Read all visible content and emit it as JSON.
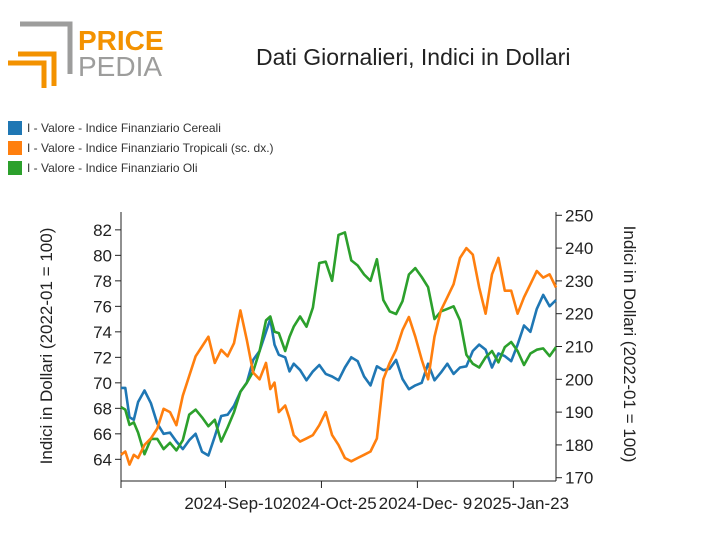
{
  "logo": {
    "word1": "PRICE",
    "word2": "PEDIA",
    "orange": "#f39200",
    "gray": "#9d9d9c"
  },
  "chart_data": {
    "type": "line",
    "title": "Dati Giornalieri, Indici in Dollari",
    "xlabel": "",
    "ylabel_left": "Indici in Dollari (2022-01 = 100)",
    "ylabel_right": "Indici in Dollari (2022-01 = 100)",
    "x_range": [
      "2024-07-23",
      "2025-02-12"
    ],
    "x_ticks": [
      {
        "date": "2024-09-10",
        "label": "2024-Sep-10"
      },
      {
        "date": "2024-10-25",
        "label": "2024-Oct-25"
      },
      {
        "date": "2024-12-09",
        "label": "2024-Dec- 9"
      },
      {
        "date": "2025-01-23",
        "label": "2025-Jan-23"
      }
    ],
    "ylim_left": [
      62.3,
      83.4
    ],
    "ylim_right": [
      169,
      251
    ],
    "yticks_left": [
      64,
      66,
      68,
      70,
      72,
      74,
      76,
      78,
      80,
      82
    ],
    "yticks_right": [
      170,
      180,
      190,
      200,
      210,
      220,
      230,
      240,
      250
    ],
    "legend_position": "top-left",
    "grid": false,
    "series": [
      {
        "name": "I - Valore - Indice Finanziario Cereali",
        "color": "#1f77b4",
        "axis": "left",
        "x": [
          "2024-07-23",
          "2024-07-25",
          "2024-07-27",
          "2024-07-29",
          "2024-07-31",
          "2024-08-03",
          "2024-08-06",
          "2024-08-09",
          "2024-08-12",
          "2024-08-15",
          "2024-08-18",
          "2024-08-21",
          "2024-08-24",
          "2024-08-27",
          "2024-08-30",
          "2024-09-02",
          "2024-09-05",
          "2024-09-08",
          "2024-09-11",
          "2024-09-14",
          "2024-09-17",
          "2024-09-20",
          "2024-09-23",
          "2024-09-26",
          "2024-09-29",
          "2024-10-01",
          "2024-10-03",
          "2024-10-05",
          "2024-10-08",
          "2024-10-10",
          "2024-10-12",
          "2024-10-15",
          "2024-10-18",
          "2024-10-21",
          "2024-10-24",
          "2024-10-27",
          "2024-10-30",
          "2024-11-02",
          "2024-11-05",
          "2024-11-08",
          "2024-11-11",
          "2024-11-14",
          "2024-11-17",
          "2024-11-20",
          "2024-11-23",
          "2024-11-26",
          "2024-11-29",
          "2024-12-02",
          "2024-12-05",
          "2024-12-08",
          "2024-12-11",
          "2024-12-14",
          "2024-12-17",
          "2024-12-20",
          "2024-12-23",
          "2024-12-26",
          "2024-12-29",
          "2025-01-01",
          "2025-01-04",
          "2025-01-07",
          "2025-01-10",
          "2025-01-13",
          "2025-01-16",
          "2025-01-19",
          "2025-01-22",
          "2025-01-25",
          "2025-01-28",
          "2025-01-31",
          "2025-02-03",
          "2025-02-06",
          "2025-02-09",
          "2025-02-12"
        ],
        "y": [
          69.6,
          69.6,
          67.3,
          67.1,
          68.5,
          69.4,
          68.4,
          66.8,
          66.0,
          66.1,
          65.4,
          64.8,
          65.5,
          66.0,
          64.6,
          64.3,
          65.8,
          67.4,
          67.5,
          68.2,
          69.3,
          70.0,
          71.8,
          72.5,
          74.0,
          75.0,
          73.0,
          72.2,
          72.0,
          70.9,
          71.5,
          71.0,
          70.2,
          70.9,
          71.4,
          70.7,
          70.5,
          70.2,
          71.2,
          72.0,
          71.7,
          70.5,
          69.8,
          71.3,
          71.0,
          71.1,
          71.8,
          70.3,
          69.5,
          69.8,
          70.0,
          71.5,
          70.2,
          70.8,
          71.5,
          70.7,
          71.2,
          71.3,
          72.5,
          73.0,
          72.6,
          71.2,
          72.3,
          72.1,
          71.7,
          73.0,
          74.5,
          74.0,
          75.8,
          76.9,
          76.0,
          76.5
        ]
      },
      {
        "name": "I - Valore - Indice Finanziario Tropicali (sc. dx.)",
        "color": "#ff7f0e",
        "axis": "right",
        "x": [
          "2024-07-23",
          "2024-07-25",
          "2024-07-27",
          "2024-07-29",
          "2024-07-31",
          "2024-08-03",
          "2024-08-06",
          "2024-08-09",
          "2024-08-12",
          "2024-08-15",
          "2024-08-18",
          "2024-08-21",
          "2024-08-24",
          "2024-08-27",
          "2024-08-30",
          "2024-09-02",
          "2024-09-05",
          "2024-09-08",
          "2024-09-11",
          "2024-09-14",
          "2024-09-17",
          "2024-09-20",
          "2024-09-23",
          "2024-09-26",
          "2024-09-29",
          "2024-10-01",
          "2024-10-03",
          "2024-10-05",
          "2024-10-08",
          "2024-10-10",
          "2024-10-12",
          "2024-10-15",
          "2024-10-18",
          "2024-10-21",
          "2024-10-24",
          "2024-10-27",
          "2024-10-30",
          "2024-11-02",
          "2024-11-05",
          "2024-11-08",
          "2024-11-11",
          "2024-11-14",
          "2024-11-17",
          "2024-11-20",
          "2024-11-23",
          "2024-11-26",
          "2024-11-29",
          "2024-12-02",
          "2024-12-05",
          "2024-12-08",
          "2024-12-11",
          "2024-12-14",
          "2024-12-17",
          "2024-12-20",
          "2024-12-23",
          "2024-12-26",
          "2024-12-29",
          "2025-01-01",
          "2025-01-04",
          "2025-01-07",
          "2025-01-10",
          "2025-01-13",
          "2025-01-16",
          "2025-01-19",
          "2025-01-22",
          "2025-01-25",
          "2025-01-28",
          "2025-01-31",
          "2025-02-03",
          "2025-02-06",
          "2025-02-09",
          "2025-02-12"
        ],
        "y": [
          177,
          178,
          174,
          177,
          176,
          180,
          182,
          185,
          191,
          190,
          186,
          195,
          201,
          207,
          210,
          213,
          205,
          209,
          207,
          211,
          221,
          212,
          202,
          200,
          205,
          197,
          199,
          190,
          192,
          188,
          183,
          181,
          182,
          183,
          186,
          190,
          183,
          180,
          176,
          175,
          176,
          177,
          178,
          182,
          200,
          205,
          209,
          215,
          219,
          213,
          206,
          200,
          213,
          221,
          225,
          229,
          237,
          240,
          238,
          228,
          220,
          232,
          237,
          227,
          227,
          220,
          225,
          229,
          233,
          231,
          232,
          228
        ]
      },
      {
        "name": "I - Valore - Indice Finanziario Oli",
        "color": "#2ca02c",
        "axis": "left",
        "x": [
          "2024-07-23",
          "2024-07-25",
          "2024-07-27",
          "2024-07-29",
          "2024-07-31",
          "2024-08-03",
          "2024-08-06",
          "2024-08-09",
          "2024-08-12",
          "2024-08-15",
          "2024-08-18",
          "2024-08-21",
          "2024-08-24",
          "2024-08-27",
          "2024-08-30",
          "2024-09-02",
          "2024-09-05",
          "2024-09-08",
          "2024-09-11",
          "2024-09-14",
          "2024-09-17",
          "2024-09-20",
          "2024-09-23",
          "2024-09-26",
          "2024-09-29",
          "2024-10-01",
          "2024-10-03",
          "2024-10-05",
          "2024-10-08",
          "2024-10-10",
          "2024-10-12",
          "2024-10-15",
          "2024-10-18",
          "2024-10-21",
          "2024-10-24",
          "2024-10-27",
          "2024-10-30",
          "2024-11-02",
          "2024-11-05",
          "2024-11-08",
          "2024-11-11",
          "2024-11-14",
          "2024-11-17",
          "2024-11-20",
          "2024-11-23",
          "2024-11-26",
          "2024-11-29",
          "2024-12-02",
          "2024-12-05",
          "2024-12-08",
          "2024-12-11",
          "2024-12-14",
          "2024-12-17",
          "2024-12-20",
          "2024-12-23",
          "2024-12-26",
          "2024-12-29",
          "2025-01-01",
          "2025-01-04",
          "2025-01-07",
          "2025-01-10",
          "2025-01-13",
          "2025-01-16",
          "2025-01-19",
          "2025-01-22",
          "2025-01-25",
          "2025-01-28",
          "2025-01-31",
          "2025-02-03",
          "2025-02-06",
          "2025-02-09",
          "2025-02-12"
        ],
        "y": [
          68.1,
          67.9,
          66.7,
          66.9,
          66.1,
          64.4,
          65.6,
          65.6,
          64.8,
          65.3,
          64.7,
          65.5,
          67.5,
          67.9,
          67.3,
          66.6,
          67.1,
          65.4,
          66.5,
          67.7,
          69.3,
          70.0,
          70.9,
          72.5,
          74.9,
          75.2,
          74.0,
          73.9,
          72.5,
          73.6,
          74.4,
          75.2,
          74.4,
          75.9,
          79.4,
          79.5,
          78.0,
          81.6,
          81.8,
          79.6,
          79.2,
          78.5,
          78.0,
          79.7,
          76.5,
          75.6,
          75.4,
          76.4,
          78.5,
          79.0,
          78.3,
          77.5,
          75.0,
          75.6,
          75.8,
          76.0,
          74.9,
          72.2,
          71.5,
          71.2,
          72.0,
          72.5,
          71.6,
          72.8,
          73.2,
          72.5,
          71.4,
          72.3,
          72.6,
          72.7,
          72.1,
          72.8
        ]
      }
    ]
  }
}
